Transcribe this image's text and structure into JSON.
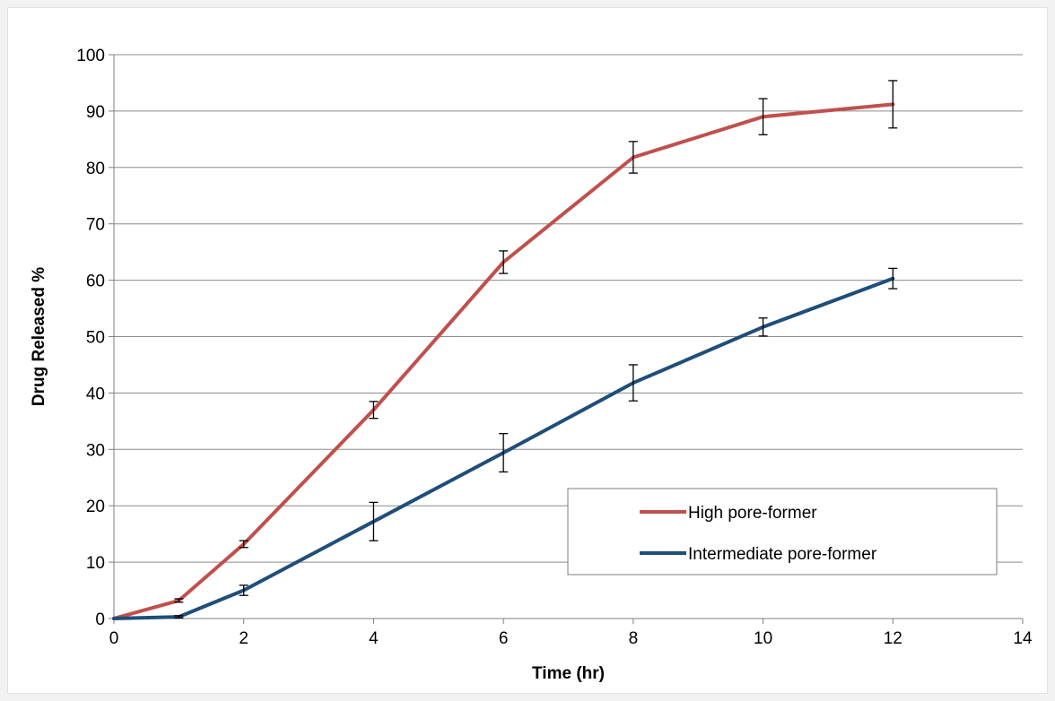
{
  "chart_data": {
    "type": "line",
    "title": "",
    "xlabel": "Time (hr)",
    "ylabel": "Drug Released %",
    "xlim": [
      0,
      14
    ],
    "ylim": [
      0,
      100
    ],
    "xticks": [
      0,
      2,
      4,
      6,
      8,
      10,
      12,
      14
    ],
    "yticks": [
      0,
      10,
      20,
      30,
      40,
      50,
      60,
      70,
      80,
      90,
      100
    ],
    "grid": "horizontal",
    "legend_position": "lower-right",
    "series": [
      {
        "name": "High pore-former",
        "color": "#c0504d",
        "x": [
          0,
          1,
          2,
          4,
          6,
          8,
          10,
          12
        ],
        "y": [
          0,
          3.2,
          13.2,
          37.0,
          63.2,
          81.8,
          89.0,
          91.2
        ],
        "error": [
          0,
          0.3,
          0.6,
          1.5,
          2.0,
          2.8,
          3.2,
          4.2
        ]
      },
      {
        "name": "Intermediate pore-former",
        "color": "#1f4e79",
        "x": [
          0,
          1,
          2,
          4,
          6,
          8,
          10,
          12
        ],
        "y": [
          0,
          0.3,
          5.0,
          17.2,
          29.4,
          41.8,
          51.7,
          60.3
        ],
        "error": [
          0,
          0.2,
          0.9,
          3.4,
          3.4,
          3.2,
          1.6,
          1.8
        ]
      }
    ]
  }
}
